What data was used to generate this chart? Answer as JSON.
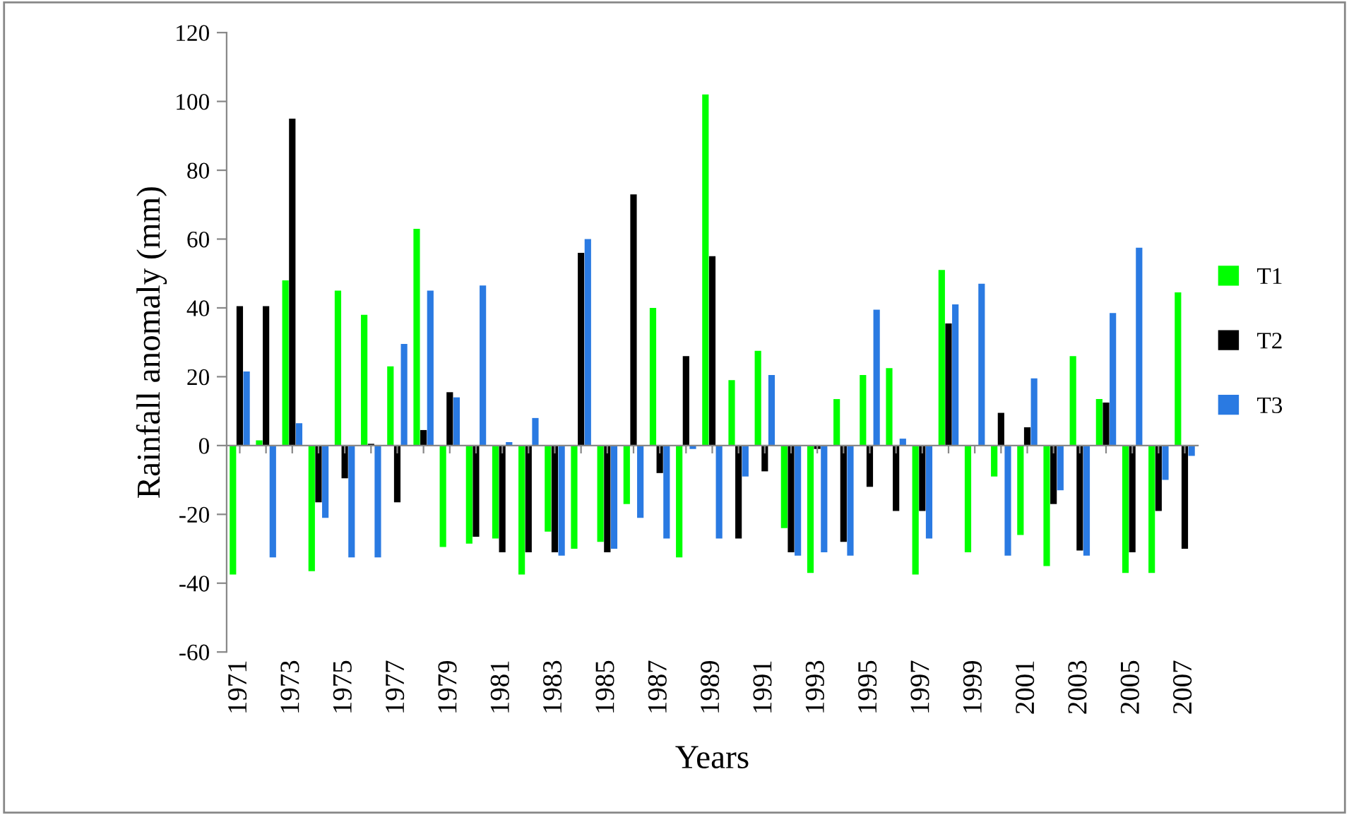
{
  "chart_data": {
    "type": "bar",
    "xlabel": "Years",
    "ylabel": "Rainfall anomaly (mm)",
    "categories": [
      "1971",
      null,
      "1973",
      null,
      "1975",
      null,
      "1977",
      null,
      "1979",
      null,
      "1981",
      null,
      "1983",
      null,
      "1985",
      null,
      "1987",
      null,
      "1989",
      null,
      "1991",
      null,
      "1993",
      null,
      "1995",
      null,
      "1997",
      null,
      "1999",
      null,
      "2001",
      null,
      "2003",
      null,
      "2005",
      null,
      "2007"
    ],
    "series": [
      {
        "name": "T1",
        "color": "#00ff00",
        "values": [
          -37.5,
          1.5,
          48,
          -36.5,
          45,
          38,
          23,
          63,
          -29.5,
          -28.5,
          -27,
          -37.5,
          -25,
          -30,
          -28,
          -17,
          40,
          -32.5,
          102,
          19,
          27.5,
          -24,
          -37,
          13.5,
          20.5,
          22.5,
          -37.5,
          51,
          -31,
          -9,
          -26,
          -35,
          26,
          13.5,
          -37,
          -37,
          44.5
        ]
      },
      {
        "name": "T2",
        "color": "#000000",
        "values": [
          40.5,
          40.5,
          95,
          -16.5,
          -9.5,
          0.5,
          -16.5,
          4.5,
          15.5,
          -26.5,
          -31,
          -31,
          -31,
          56,
          -31,
          73,
          -8,
          26,
          55,
          -27,
          -7.5,
          -31,
          -1,
          -28,
          -12,
          -19,
          -19,
          35.5,
          null,
          9.5,
          5.3,
          -17,
          -30.5,
          12.5,
          -31,
          -19,
          -30
        ]
      },
      {
        "name": "T3",
        "color": "#2a7ae2",
        "values": [
          21.5,
          -32.5,
          6.5,
          -21,
          -32.5,
          -32.5,
          29.5,
          45,
          14,
          46.5,
          1,
          8,
          -32,
          60,
          -30,
          -21,
          -27,
          -1,
          -27,
          -9,
          20.5,
          -32,
          -31,
          -32,
          39.5,
          2,
          -27,
          41,
          47,
          -32,
          19.5,
          -13,
          -32,
          38.5,
          57.5,
          -10,
          -3
        ]
      }
    ],
    "ylim": [
      -60,
      120
    ],
    "yticks": [
      -60,
      -40,
      -20,
      0,
      20,
      40,
      60,
      80,
      100,
      120
    ],
    "legend": "right"
  }
}
